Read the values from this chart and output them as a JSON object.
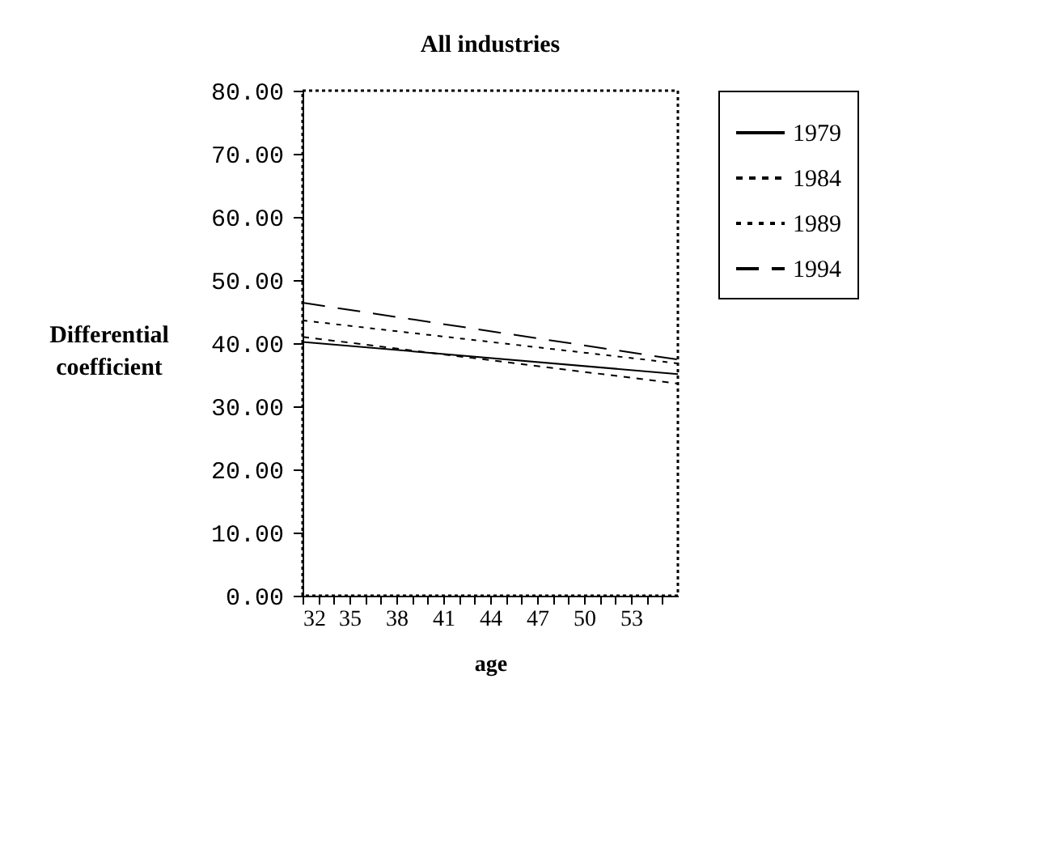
{
  "chart_data": {
    "type": "line",
    "title": "All industries",
    "xlabel": "age",
    "ylabel": "Differential coefficient",
    "x": [
      32,
      56
    ],
    "series": [
      {
        "name": "1979",
        "color": "#000000",
        "line_style": "solid",
        "values": [
          40.2,
          35.1
        ]
      },
      {
        "name": "1984",
        "color": "#000000",
        "line_style": "dashed",
        "values": [
          41.0,
          33.6
        ]
      },
      {
        "name": "1989",
        "color": "#000000",
        "line_style": "dotted",
        "values": [
          43.6,
          36.8
        ]
      },
      {
        "name": "1994",
        "color": "#000000",
        "line_style": "dashed",
        "values": [
          46.4,
          37.4
        ]
      }
    ],
    "xlim": [
      32,
      56
    ],
    "xticks": [
      32,
      {
        "value": 33,
        "label": null
      },
      {
        "value": 34,
        "label": null
      },
      35,
      {
        "value": 36,
        "label": null
      },
      {
        "value": 37,
        "label": null
      },
      38,
      {
        "value": 39,
        "label": null
      },
      {
        "value": 40,
        "label": null
      },
      41,
      {
        "value": 42,
        "label": null
      },
      {
        "value": 43,
        "label": null
      },
      44,
      {
        "value": 45,
        "label": null
      },
      {
        "value": 46,
        "label": null
      },
      47,
      {
        "value": 48,
        "label": null
      },
      {
        "value": 49,
        "label": null
      },
      50,
      {
        "value": 51,
        "label": null
      },
      {
        "value": 52,
        "label": null
      },
      53,
      {
        "value": 54,
        "label": null
      },
      {
        "value": 55,
        "label": null
      }
    ],
    "ylim": [
      0,
      80
    ],
    "yticks": [
      {
        "value": 0,
        "label": "0.00"
      },
      {
        "value": 10,
        "label": "10.00"
      },
      {
        "value": 20,
        "label": "20.00"
      },
      {
        "value": 30,
        "label": "30.00"
      },
      {
        "value": 40,
        "label": "40.00"
      },
      {
        "value": 50,
        "label": "50.00"
      },
      {
        "value": 60,
        "label": "60.00"
      },
      {
        "value": 70,
        "label": "70.00"
      },
      {
        "value": 80,
        "label": "80.00"
      }
    ],
    "grid": false,
    "legend": "right",
    "marker": "none"
  }
}
